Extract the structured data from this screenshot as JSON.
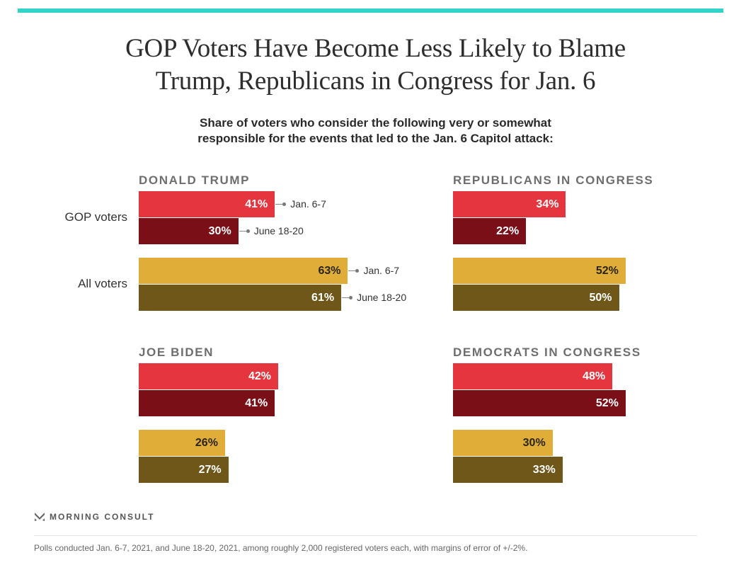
{
  "header": {
    "title_line1": "GOP Voters Have Become Less Likely to Blame",
    "title_line2": "Trump, Republicans in Congress for Jan. 6",
    "subtitle_line1": "Share of voters who consider the following very or somewhat",
    "subtitle_line2": "responsible for the events that led to the Jan. 6 Capitol attack:"
  },
  "colors": {
    "accent_bar": "#33d3c9",
    "gop_jan": "#e5353f",
    "gop_june": "#7b0f17",
    "all_jan": "#e0ae38",
    "all_june": "#6f5619",
    "label_light": "#ffffff",
    "label_dark": "#2a2418"
  },
  "chart_data": {
    "type": "bar",
    "orientation": "horizontal",
    "title": "GOP Voters Have Become Less Likely to Blame Trump, Republicans in Congress for Jan. 6",
    "subtitle": "Share of voters who consider the following very or somewhat responsible for the events that led to the Jan. 6 Capitol attack:",
    "unit": "%",
    "xlim": [
      0,
      100
    ],
    "grid": false,
    "groups": [
      "GOP voters",
      "All voters"
    ],
    "series_names": [
      "Jan. 6-7",
      "June 18-20"
    ],
    "panels": [
      {
        "name": "DONALD TRUMP",
        "series": [
          {
            "group": "GOP voters",
            "name": "Jan. 6-7",
            "value": 41
          },
          {
            "group": "GOP voters",
            "name": "June 18-20",
            "value": 30
          },
          {
            "group": "All voters",
            "name": "Jan. 6-7",
            "value": 63
          },
          {
            "group": "All voters",
            "name": "June 18-20",
            "value": 61
          }
        ]
      },
      {
        "name": "REPUBLICANS IN CONGRESS",
        "series": [
          {
            "group": "GOP voters",
            "name": "Jan. 6-7",
            "value": 34
          },
          {
            "group": "GOP voters",
            "name": "June 18-20",
            "value": 22
          },
          {
            "group": "All voters",
            "name": "Jan. 6-7",
            "value": 52
          },
          {
            "group": "All voters",
            "name": "June 18-20",
            "value": 50
          }
        ]
      },
      {
        "name": "JOE BIDEN",
        "series": [
          {
            "group": "GOP voters",
            "name": "Jan. 6-7",
            "value": 42
          },
          {
            "group": "GOP voters",
            "name": "June 18-20",
            "value": 41
          },
          {
            "group": "All voters",
            "name": "Jan. 6-7",
            "value": 26
          },
          {
            "group": "All voters",
            "name": "June 18-20",
            "value": 27
          }
        ]
      },
      {
        "name": "DEMOCRATS IN CONGRESS",
        "series": [
          {
            "group": "GOP voters",
            "name": "Jan. 6-7",
            "value": 48
          },
          {
            "group": "GOP voters",
            "name": "June 18-20",
            "value": 52
          },
          {
            "group": "All voters",
            "name": "Jan. 6-7",
            "value": 30
          },
          {
            "group": "All voters",
            "name": "June 18-20",
            "value": 33
          }
        ]
      }
    ],
    "annotations": [
      "Jan. 6-7",
      "June 18-20",
      "Jan. 6-7",
      "June 18-20"
    ]
  },
  "footer": {
    "brand": "MORNING CONSULT",
    "note": "Polls conducted Jan. 6-7, 2021, and June 18-20, 2021, among roughly 2,000 registered voters each, with margins of error of +/-2%."
  }
}
